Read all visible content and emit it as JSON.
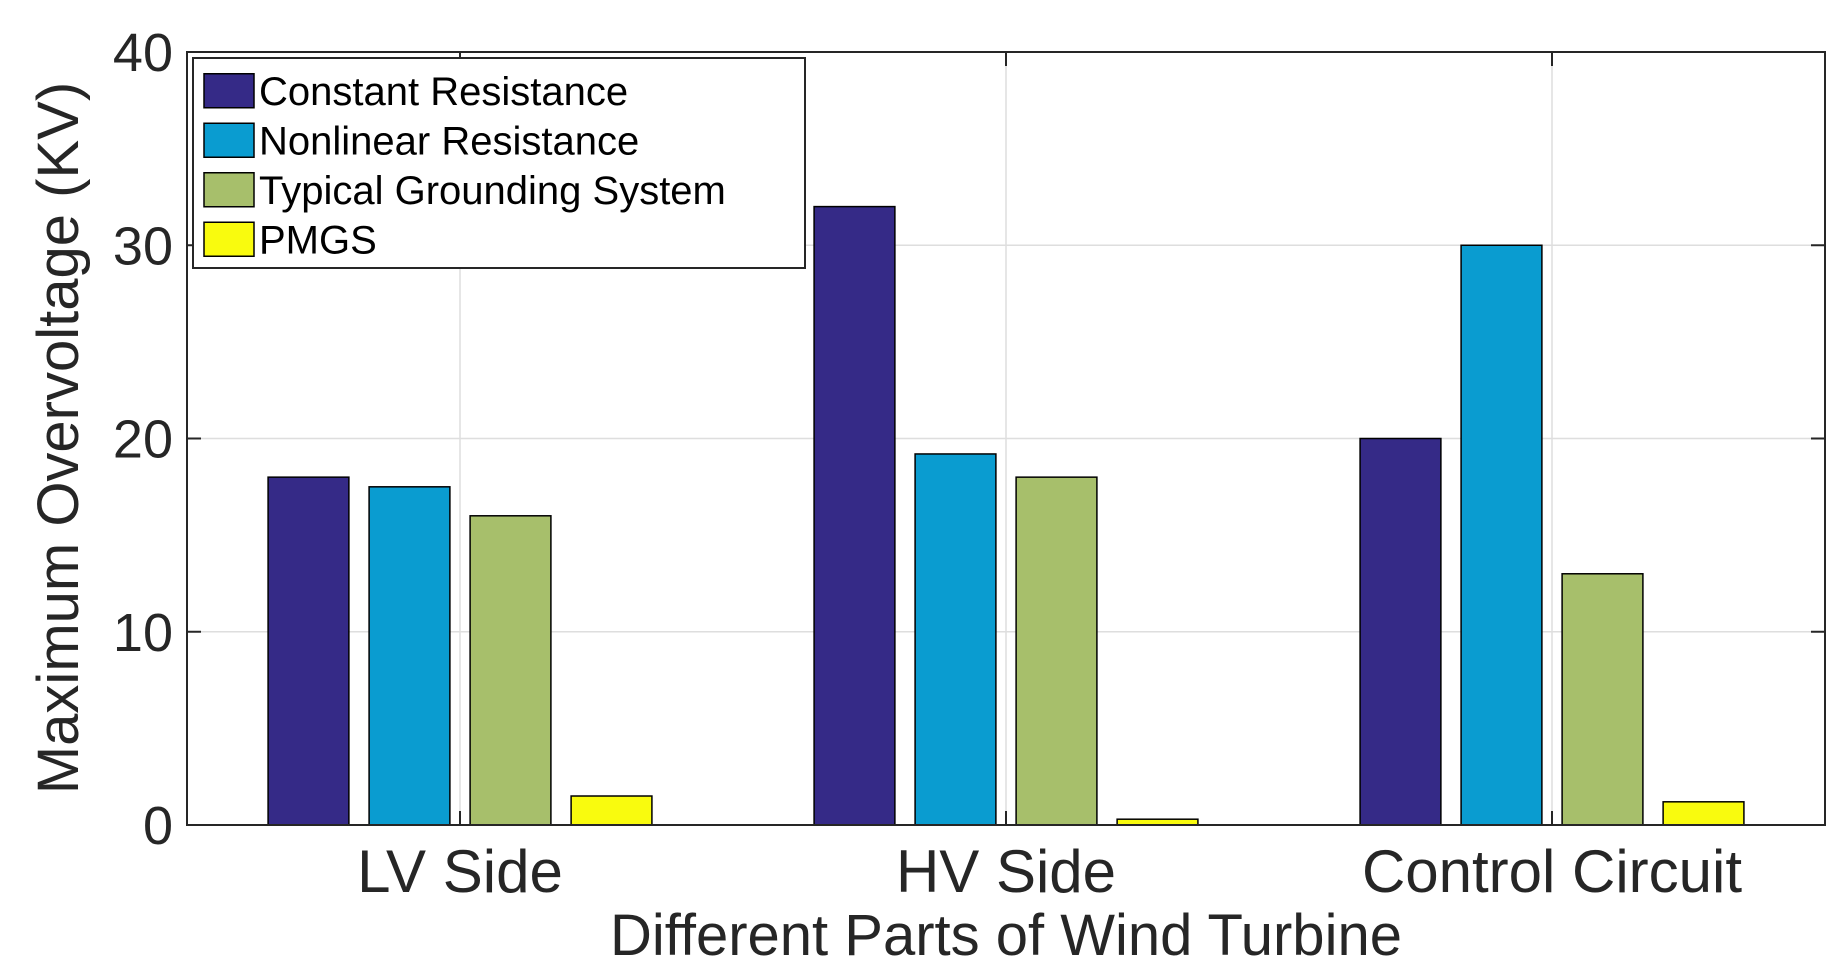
{
  "chart_data": {
    "type": "bar",
    "title": "",
    "xlabel": "Different Parts of Wind Turbine",
    "ylabel": "Maximum Overvoltage (KV)",
    "categories": [
      "LV Side",
      "HV Side",
      "Control Circuit"
    ],
    "ylim": [
      0,
      40
    ],
    "yticks": [
      "0",
      "10",
      "20",
      "30",
      "40"
    ],
    "grid": true,
    "legend_position": "top-left",
    "series": [
      {
        "name": "Constant Resistance",
        "color": "#352a87",
        "values": [
          18,
          32,
          20
        ]
      },
      {
        "name": "Nonlinear Resistance",
        "color": "#0a9cd0",
        "values": [
          17.5,
          19.2,
          30
        ]
      },
      {
        "name": "Typical Grounding System",
        "color": "#a7bf6b",
        "values": [
          16,
          18,
          13
        ]
      },
      {
        "name": "PMGS",
        "color": "#f9fb0e",
        "values": [
          1.5,
          0.3,
          1.2
        ]
      }
    ]
  }
}
